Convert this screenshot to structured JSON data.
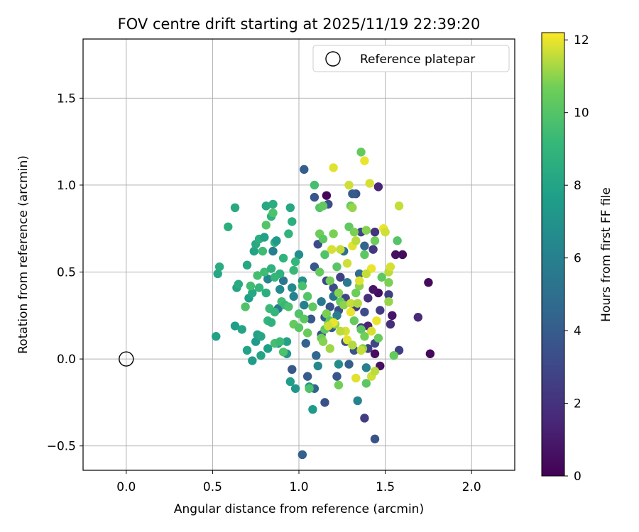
{
  "chart_data": {
    "type": "scatter",
    "title": "FOV centre drift starting at 2025/11/19 22:39:20",
    "xlabel": "Angular distance from reference (arcmin)",
    "ylabel": "Rotation from reference (arcmin)",
    "xlim": [
      -0.25,
      2.25
    ],
    "ylim": [
      -0.64,
      1.84
    ],
    "xticks": [
      0.0,
      0.5,
      1.0,
      1.5,
      2.0
    ],
    "xtick_labels": [
      "0.0",
      "0.5",
      "1.0",
      "1.5",
      "2.0"
    ],
    "yticks": [
      -0.5,
      0.0,
      0.5,
      1.0,
      1.5
    ],
    "ytick_labels": [
      "−0.5",
      "0.0",
      "0.5",
      "1.0",
      "1.5"
    ],
    "grid": true,
    "legend": {
      "position": "top-right",
      "entries": [
        "Reference platepar"
      ]
    },
    "reference_point": {
      "x": 0.0,
      "y": 0.0,
      "label": "Reference platepar"
    },
    "colorbar": {
      "label": "Hours from first FF file",
      "min": 0,
      "max": 12.2,
      "ticks": [
        0,
        2,
        4,
        6,
        8,
        10,
        12
      ],
      "tick_labels": [
        "0",
        "2",
        "4",
        "6",
        "8",
        "10",
        "12"
      ],
      "colormap": "viridis"
    },
    "points": [
      {
        "x": 1.16,
        "y": 0.94,
        "h": 0.2
      },
      {
        "x": 1.46,
        "y": 0.99,
        "h": 1.5
      },
      {
        "x": 1.56,
        "y": 0.6,
        "h": 0.6
      },
      {
        "x": 1.6,
        "y": 0.6,
        "h": 0.4
      },
      {
        "x": 1.75,
        "y": 0.44,
        "h": 0.4
      },
      {
        "x": 1.69,
        "y": 0.24,
        "h": 1.6
      },
      {
        "x": 1.76,
        "y": 0.03,
        "h": 0.3
      },
      {
        "x": 1.58,
        "y": 0.05,
        "h": 2.6
      },
      {
        "x": 1.46,
        "y": 0.38,
        "h": 0.5
      },
      {
        "x": 1.43,
        "y": 0.4,
        "h": 0.8
      },
      {
        "x": 1.44,
        "y": 0.03,
        "h": 0.5
      },
      {
        "x": 1.47,
        "y": -0.04,
        "h": 0.6
      },
      {
        "x": 1.54,
        "y": 0.25,
        "h": 0.8
      },
      {
        "x": 1.53,
        "y": 0.2,
        "h": 1.8
      },
      {
        "x": 1.52,
        "y": 0.37,
        "h": 2.6
      },
      {
        "x": 1.44,
        "y": 0.73,
        "h": 2.1
      },
      {
        "x": 1.43,
        "y": 0.63,
        "h": 2.2
      },
      {
        "x": 1.36,
        "y": 0.73,
        "h": 2.8
      },
      {
        "x": 1.4,
        "y": 0.35,
        "h": 1.9
      },
      {
        "x": 1.33,
        "y": 0.3,
        "h": 2.5
      },
      {
        "x": 1.36,
        "y": 0.18,
        "h": 2.2
      },
      {
        "x": 1.4,
        "y": 0.19,
        "h": 1.4
      },
      {
        "x": 1.4,
        "y": 0.06,
        "h": 2.6
      },
      {
        "x": 1.44,
        "y": 0.09,
        "h": 2.9
      },
      {
        "x": 1.38,
        "y": -0.34,
        "h": 2.5
      },
      {
        "x": 1.44,
        "y": -0.46,
        "h": 3.6
      },
      {
        "x": 1.33,
        "y": 0.95,
        "h": 3.4
      },
      {
        "x": 1.31,
        "y": 0.95,
        "h": 4.0
      },
      {
        "x": 1.17,
        "y": 0.89,
        "h": 3.4
      },
      {
        "x": 1.11,
        "y": 0.66,
        "h": 3.2
      },
      {
        "x": 1.03,
        "y": 1.09,
        "h": 4.1
      },
      {
        "x": 1.09,
        "y": 0.93,
        "h": 3.8
      },
      {
        "x": 1.16,
        "y": 0.45,
        "h": 3.0
      },
      {
        "x": 1.09,
        "y": 0.53,
        "h": 3.7
      },
      {
        "x": 1.2,
        "y": 0.41,
        "h": 3.2
      },
      {
        "x": 1.24,
        "y": 0.47,
        "h": 2.7
      },
      {
        "x": 1.27,
        "y": 0.35,
        "h": 2.8
      },
      {
        "x": 1.23,
        "y": 0.28,
        "h": 3.3
      },
      {
        "x": 1.18,
        "y": 0.3,
        "h": 3.5
      },
      {
        "x": 1.15,
        "y": 0.24,
        "h": 4.0
      },
      {
        "x": 1.19,
        "y": 0.18,
        "h": 3.9
      },
      {
        "x": 1.13,
        "y": 0.14,
        "h": 3.4
      },
      {
        "x": 1.07,
        "y": 0.23,
        "h": 3.8
      },
      {
        "x": 1.04,
        "y": 0.09,
        "h": 4.3
      },
      {
        "x": 1.1,
        "y": 0.02,
        "h": 4.6
      },
      {
        "x": 1.05,
        "y": -0.1,
        "h": 4.0
      },
      {
        "x": 1.09,
        "y": -0.17,
        "h": 4.4
      },
      {
        "x": 0.96,
        "y": -0.06,
        "h": 3.8
      },
      {
        "x": 1.02,
        "y": -0.55,
        "h": 4.2
      },
      {
        "x": 1.15,
        "y": -0.25,
        "h": 3.5
      },
      {
        "x": 1.22,
        "y": -0.1,
        "h": 3.7
      },
      {
        "x": 1.29,
        "y": -0.03,
        "h": 4.1
      },
      {
        "x": 1.32,
        "y": 0.05,
        "h": 3.6
      },
      {
        "x": 1.27,
        "y": 0.1,
        "h": 3.3
      },
      {
        "x": 1.38,
        "y": 0.27,
        "h": 3.1
      },
      {
        "x": 1.47,
        "y": 0.28,
        "h": 2.4
      },
      {
        "x": 1.38,
        "y": 0.65,
        "h": 4.4
      },
      {
        "x": 1.35,
        "y": 0.49,
        "h": 4.8
      },
      {
        "x": 1.26,
        "y": 0.62,
        "h": 5.0
      },
      {
        "x": 1.28,
        "y": 0.44,
        "h": 5.6
      },
      {
        "x": 1.2,
        "y": 0.36,
        "h": 5.2
      },
      {
        "x": 1.22,
        "y": 0.25,
        "h": 5.8
      },
      {
        "x": 1.13,
        "y": 0.33,
        "h": 5.5
      },
      {
        "x": 1.03,
        "y": 0.31,
        "h": 5.9
      },
      {
        "x": 0.97,
        "y": 0.36,
        "h": 6.1
      },
      {
        "x": 0.88,
        "y": 0.29,
        "h": 5.6
      },
      {
        "x": 0.85,
        "y": 0.62,
        "h": 5.9
      },
      {
        "x": 0.82,
        "y": 0.46,
        "h": 6.3
      },
      {
        "x": 0.89,
        "y": 0.4,
        "h": 6.5
      },
      {
        "x": 0.91,
        "y": 0.45,
        "h": 5.4
      },
      {
        "x": 0.96,
        "y": 0.41,
        "h": 6.6
      },
      {
        "x": 1.0,
        "y": 0.6,
        "h": 6.8
      },
      {
        "x": 1.02,
        "y": 0.45,
        "h": 6.9
      },
      {
        "x": 1.34,
        "y": -0.24,
        "h": 6.2
      },
      {
        "x": 1.39,
        "y": -0.05,
        "h": 6.0
      },
      {
        "x": 1.23,
        "y": -0.03,
        "h": 6.7
      },
      {
        "x": 1.11,
        "y": -0.04,
        "h": 6.4
      },
      {
        "x": 1.06,
        "y": -0.16,
        "h": 7.0
      },
      {
        "x": 1.08,
        "y": -0.29,
        "h": 7.4
      },
      {
        "x": 0.98,
        "y": -0.17,
        "h": 7.2
      },
      {
        "x": 0.95,
        "y": -0.13,
        "h": 7.6
      },
      {
        "x": 0.93,
        "y": 0.03,
        "h": 7.1
      },
      {
        "x": 0.93,
        "y": 0.1,
        "h": 7.8
      },
      {
        "x": 0.88,
        "y": 0.09,
        "h": 7.3
      },
      {
        "x": 0.82,
        "y": 0.06,
        "h": 7.7
      },
      {
        "x": 0.78,
        "y": 0.02,
        "h": 8.0
      },
      {
        "x": 0.73,
        "y": -0.01,
        "h": 7.5
      },
      {
        "x": 0.7,
        "y": 0.05,
        "h": 7.9
      },
      {
        "x": 0.75,
        "y": 0.1,
        "h": 7.4
      },
      {
        "x": 0.76,
        "y": 0.14,
        "h": 7.8
      },
      {
        "x": 0.78,
        "y": 0.13,
        "h": 8.1
      },
      {
        "x": 0.63,
        "y": 0.19,
        "h": 7.6
      },
      {
        "x": 0.67,
        "y": 0.17,
        "h": 8.0
      },
      {
        "x": 0.52,
        "y": 0.13,
        "h": 7.8
      },
      {
        "x": 0.71,
        "y": 0.35,
        "h": 7.7
      },
      {
        "x": 0.73,
        "y": 0.38,
        "h": 8.2
      },
      {
        "x": 0.64,
        "y": 0.41,
        "h": 8.0
      },
      {
        "x": 0.65,
        "y": 0.43,
        "h": 8.4
      },
      {
        "x": 0.7,
        "y": 0.54,
        "h": 8.1
      },
      {
        "x": 0.74,
        "y": 0.62,
        "h": 7.9
      },
      {
        "x": 0.75,
        "y": 0.66,
        "h": 8.3
      },
      {
        "x": 0.77,
        "y": 0.69,
        "h": 8.6
      },
      {
        "x": 0.8,
        "y": 0.7,
        "h": 7.8
      },
      {
        "x": 0.81,
        "y": 0.88,
        "h": 8.2
      },
      {
        "x": 0.84,
        "y": 0.82,
        "h": 8.8
      },
      {
        "x": 0.85,
        "y": 0.89,
        "h": 8.5
      },
      {
        "x": 0.63,
        "y": 0.87,
        "h": 8.3
      },
      {
        "x": 0.59,
        "y": 0.76,
        "h": 8.6
      },
      {
        "x": 0.53,
        "y": 0.49,
        "h": 8.1
      },
      {
        "x": 0.54,
        "y": 0.53,
        "h": 8.4
      },
      {
        "x": 0.86,
        "y": 0.67,
        "h": 8.7
      },
      {
        "x": 0.87,
        "y": 0.68,
        "h": 7.4
      },
      {
        "x": 0.94,
        "y": 0.72,
        "h": 8.9
      },
      {
        "x": 0.96,
        "y": 0.79,
        "h": 8.6
      },
      {
        "x": 0.95,
        "y": 0.87,
        "h": 8.2
      },
      {
        "x": 0.91,
        "y": 0.58,
        "h": 8.9
      },
      {
        "x": 0.98,
        "y": 0.56,
        "h": 9.0
      },
      {
        "x": 0.97,
        "y": 0.51,
        "h": 9.2
      },
      {
        "x": 0.89,
        "y": 0.49,
        "h": 8.8
      },
      {
        "x": 0.86,
        "y": 0.47,
        "h": 9.1
      },
      {
        "x": 0.8,
        "y": 0.5,
        "h": 9.4
      },
      {
        "x": 0.84,
        "y": 0.52,
        "h": 8.8
      },
      {
        "x": 0.77,
        "y": 0.41,
        "h": 9.0
      },
      {
        "x": 0.81,
        "y": 0.38,
        "h": 8.6
      },
      {
        "x": 0.83,
        "y": 0.29,
        "h": 9.3
      },
      {
        "x": 0.86,
        "y": 0.27,
        "h": 9.0
      },
      {
        "x": 0.9,
        "y": 0.33,
        "h": 9.5
      },
      {
        "x": 0.92,
        "y": 0.31,
        "h": 9.2
      },
      {
        "x": 0.94,
        "y": 0.3,
        "h": 9.7
      },
      {
        "x": 0.82,
        "y": 0.22,
        "h": 9.1
      },
      {
        "x": 0.84,
        "y": 0.21,
        "h": 8.7
      },
      {
        "x": 0.86,
        "y": 0.09,
        "h": 9.6
      },
      {
        "x": 0.89,
        "y": 0.1,
        "h": 9.3
      },
      {
        "x": 0.91,
        "y": 0.04,
        "h": 9.8
      },
      {
        "x": 0.79,
        "y": 0.62,
        "h": 9.4
      },
      {
        "x": 0.76,
        "y": 0.48,
        "h": 9.6
      },
      {
        "x": 0.69,
        "y": 0.3,
        "h": 9.9
      },
      {
        "x": 0.72,
        "y": 0.42,
        "h": 9.5
      },
      {
        "x": 0.81,
        "y": 0.77,
        "h": 10.0
      },
      {
        "x": 0.85,
        "y": 0.84,
        "h": 9.8
      },
      {
        "x": 1.02,
        "y": 0.42,
        "h": 9.7
      },
      {
        "x": 1.05,
        "y": 0.36,
        "h": 10.0
      },
      {
        "x": 1.08,
        "y": 0.3,
        "h": 10.3
      },
      {
        "x": 1.0,
        "y": 0.26,
        "h": 9.9
      },
      {
        "x": 1.03,
        "y": 0.23,
        "h": 10.2
      },
      {
        "x": 0.97,
        "y": 0.2,
        "h": 10.4
      },
      {
        "x": 1.0,
        "y": 0.18,
        "h": 10.1
      },
      {
        "x": 1.05,
        "y": 0.15,
        "h": 10.5
      },
      {
        "x": 1.06,
        "y": -0.17,
        "h": 9.8
      },
      {
        "x": 1.13,
        "y": 0.12,
        "h": 10.6
      },
      {
        "x": 1.15,
        "y": 0.17,
        "h": 10.3
      },
      {
        "x": 1.09,
        "y": 1.0,
        "h": 9.6
      },
      {
        "x": 1.12,
        "y": 0.87,
        "h": 10.0
      },
      {
        "x": 1.14,
        "y": 0.88,
        "h": 10.3
      },
      {
        "x": 1.12,
        "y": 0.72,
        "h": 10.6
      },
      {
        "x": 1.14,
        "y": 0.69,
        "h": 10.2
      },
      {
        "x": 1.2,
        "y": 0.72,
        "h": 10.8
      },
      {
        "x": 1.15,
        "y": 0.6,
        "h": 9.9
      },
      {
        "x": 1.12,
        "y": 0.5,
        "h": 10.4
      },
      {
        "x": 1.18,
        "y": 0.45,
        "h": 10.7
      },
      {
        "x": 1.22,
        "y": 0.53,
        "h": 10.1
      },
      {
        "x": 1.23,
        "y": 0.38,
        "h": 10.9
      },
      {
        "x": 1.24,
        "y": 0.33,
        "h": 10.5
      },
      {
        "x": 1.26,
        "y": 0.31,
        "h": 11.0
      },
      {
        "x": 1.16,
        "y": 0.26,
        "h": 10.8
      },
      {
        "x": 1.18,
        "y": 0.22,
        "h": 10.2
      },
      {
        "x": 1.21,
        "y": 0.2,
        "h": 11.1
      },
      {
        "x": 1.17,
        "y": 0.2,
        "h": 10.6
      },
      {
        "x": 1.14,
        "y": 0.1,
        "h": 10.9
      },
      {
        "x": 1.18,
        "y": 0.06,
        "h": 11.2
      },
      {
        "x": 1.23,
        "y": -0.15,
        "h": 10.7
      },
      {
        "x": 1.29,
        "y": 0.76,
        "h": 10.3
      },
      {
        "x": 1.32,
        "y": 0.73,
        "h": 10.8
      },
      {
        "x": 1.3,
        "y": 0.88,
        "h": 10.5
      },
      {
        "x": 1.31,
        "y": 0.87,
        "h": 11.1
      },
      {
        "x": 1.36,
        "y": 1.19,
        "h": 10.4
      },
      {
        "x": 1.39,
        "y": 0.74,
        "h": 10.9
      },
      {
        "x": 1.38,
        "y": 0.6,
        "h": 10.2
      },
      {
        "x": 1.35,
        "y": 0.42,
        "h": 11.0
      },
      {
        "x": 1.33,
        "y": 0.38,
        "h": 10.6
      },
      {
        "x": 1.32,
        "y": 0.22,
        "h": 10.4
      },
      {
        "x": 1.36,
        "y": 0.17,
        "h": 10.1
      },
      {
        "x": 1.38,
        "y": 0.13,
        "h": 10.7
      },
      {
        "x": 1.37,
        "y": 0.06,
        "h": 11.0
      },
      {
        "x": 1.39,
        "y": -0.14,
        "h": 10.2
      },
      {
        "x": 1.46,
        "y": 0.12,
        "h": 10.5
      },
      {
        "x": 1.48,
        "y": 0.47,
        "h": 10.3
      },
      {
        "x": 1.52,
        "y": 0.44,
        "h": 10.8
      },
      {
        "x": 1.52,
        "y": 0.33,
        "h": 11.1
      },
      {
        "x": 1.55,
        "y": 0.02,
        "h": 10.4
      },
      {
        "x": 1.57,
        "y": 0.68,
        "h": 10.0
      },
      {
        "x": 1.44,
        "y": 0.68,
        "h": 10.6
      },
      {
        "x": 1.24,
        "y": 0.63,
        "h": 11.6
      },
      {
        "x": 1.19,
        "y": 0.63,
        "h": 11.8
      },
      {
        "x": 1.2,
        "y": 1.1,
        "h": 11.9
      },
      {
        "x": 1.29,
        "y": 1.0,
        "h": 11.7
      },
      {
        "x": 1.38,
        "y": 1.14,
        "h": 12.0
      },
      {
        "x": 1.41,
        "y": 1.01,
        "h": 11.8
      },
      {
        "x": 1.58,
        "y": 0.88,
        "h": 11.6
      },
      {
        "x": 1.49,
        "y": 0.75,
        "h": 12.0
      },
      {
        "x": 1.5,
        "y": 0.73,
        "h": 11.7
      },
      {
        "x": 1.31,
        "y": 0.65,
        "h": 11.9
      },
      {
        "x": 1.33,
        "y": 0.68,
        "h": 11.5
      },
      {
        "x": 1.42,
        "y": 0.52,
        "h": 12.0
      },
      {
        "x": 1.39,
        "y": 0.49,
        "h": 11.6
      },
      {
        "x": 1.35,
        "y": 0.45,
        "h": 11.9
      },
      {
        "x": 1.52,
        "y": 0.5,
        "h": 11.5
      },
      {
        "x": 1.53,
        "y": 0.53,
        "h": 11.8
      },
      {
        "x": 1.28,
        "y": 0.55,
        "h": 11.7
      },
      {
        "x": 1.3,
        "y": 0.32,
        "h": 11.6
      },
      {
        "x": 1.3,
        "y": 0.27,
        "h": 12.0
      },
      {
        "x": 1.34,
        "y": 0.32,
        "h": 11.4
      },
      {
        "x": 1.27,
        "y": 0.16,
        "h": 11.8
      },
      {
        "x": 1.24,
        "y": 0.16,
        "h": 11.5
      },
      {
        "x": 1.2,
        "y": 0.21,
        "h": 12.0
      },
      {
        "x": 1.17,
        "y": 0.19,
        "h": 11.7
      },
      {
        "x": 1.28,
        "y": 0.11,
        "h": 11.9
      },
      {
        "x": 1.31,
        "y": 0.08,
        "h": 11.4
      },
      {
        "x": 1.36,
        "y": 0.05,
        "h": 11.6
      },
      {
        "x": 1.45,
        "y": 0.22,
        "h": 12.0
      },
      {
        "x": 1.42,
        "y": 0.16,
        "h": 11.8
      },
      {
        "x": 1.33,
        "y": -0.11,
        "h": 11.9
      },
      {
        "x": 1.42,
        "y": -0.1,
        "h": 11.7
      },
      {
        "x": 1.44,
        "y": -0.07,
        "h": 11.5
      }
    ]
  }
}
